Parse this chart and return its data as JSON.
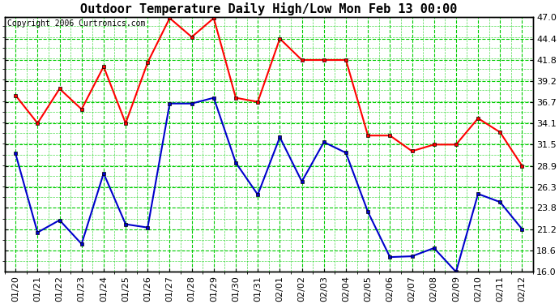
{
  "title": "Outdoor Temperature Daily High/Low Mon Feb 13 00:00",
  "copyright": "Copyright 2006 Curtronics.com",
  "dates": [
    "01/20",
    "01/21",
    "01/22",
    "01/23",
    "01/24",
    "01/25",
    "01/26",
    "01/27",
    "01/28",
    "01/29",
    "01/30",
    "01/31",
    "02/01",
    "02/02",
    "02/03",
    "02/04",
    "02/05",
    "02/06",
    "02/07",
    "02/08",
    "02/09",
    "02/10",
    "02/11",
    "02/12"
  ],
  "high": [
    37.5,
    34.1,
    38.3,
    35.8,
    41.0,
    34.1,
    41.5,
    46.9,
    44.6,
    46.9,
    37.2,
    36.7,
    44.4,
    41.8,
    41.8,
    41.8,
    32.6,
    32.6,
    30.7,
    31.5,
    31.5,
    34.7,
    33.0,
    28.9
  ],
  "low": [
    30.4,
    20.8,
    22.3,
    19.4,
    28.0,
    21.8,
    21.4,
    36.5,
    36.5,
    37.2,
    29.3,
    25.4,
    32.4,
    27.0,
    31.8,
    30.5,
    23.3,
    17.8,
    17.9,
    18.9,
    16.0,
    25.5,
    24.5,
    21.2
  ],
  "high_color": "#ff0000",
  "low_color": "#0000cc",
  "grid_color": "#00cc00",
  "bg_color": "#ffffff",
  "plot_bg_color": "#ffffff",
  "outer_bg_color": "#000000",
  "ylim_min": 16.0,
  "ylim_max": 47.0,
  "yticks": [
    16.0,
    18.6,
    21.2,
    23.8,
    26.3,
    28.9,
    31.5,
    34.1,
    36.7,
    39.2,
    41.8,
    44.4,
    47.0
  ],
  "marker": "s",
  "markersize": 3,
  "linewidth": 1.5,
  "title_fontsize": 11,
  "tick_fontsize": 8,
  "copyright_fontsize": 7
}
